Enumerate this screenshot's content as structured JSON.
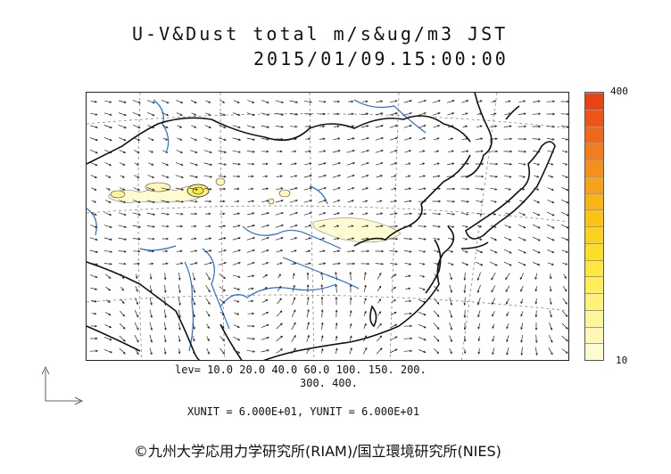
{
  "title_line1": "U-V&Dust total m/s&ug/m3 JST",
  "title_line2": "2015/01/09.15:00:00",
  "colorbar": {
    "max_label": "400",
    "min_label": "10",
    "colors": [
      "#fffbd0",
      "#fff7b8",
      "#fff59a",
      "#fff27c",
      "#ffee5c",
      "#fde740",
      "#fddd2c",
      "#fcd11e",
      "#fbc318",
      "#f9b41a",
      "#f7a21c",
      "#f5901e",
      "#f37c1e",
      "#f0681c",
      "#ec5418",
      "#e64412"
    ]
  },
  "levels_line1": "lev= 10.0 20.0 40.0 60.0 100. 150. 200.",
  "levels_line2": "300. 400.",
  "units_line": "XUNIT = 6.000E+01, YUNIT = 6.000E+01",
  "copyright": "©九州大学応用力学研究所(RIAM)/国立環境研究所(NIES)"
}
